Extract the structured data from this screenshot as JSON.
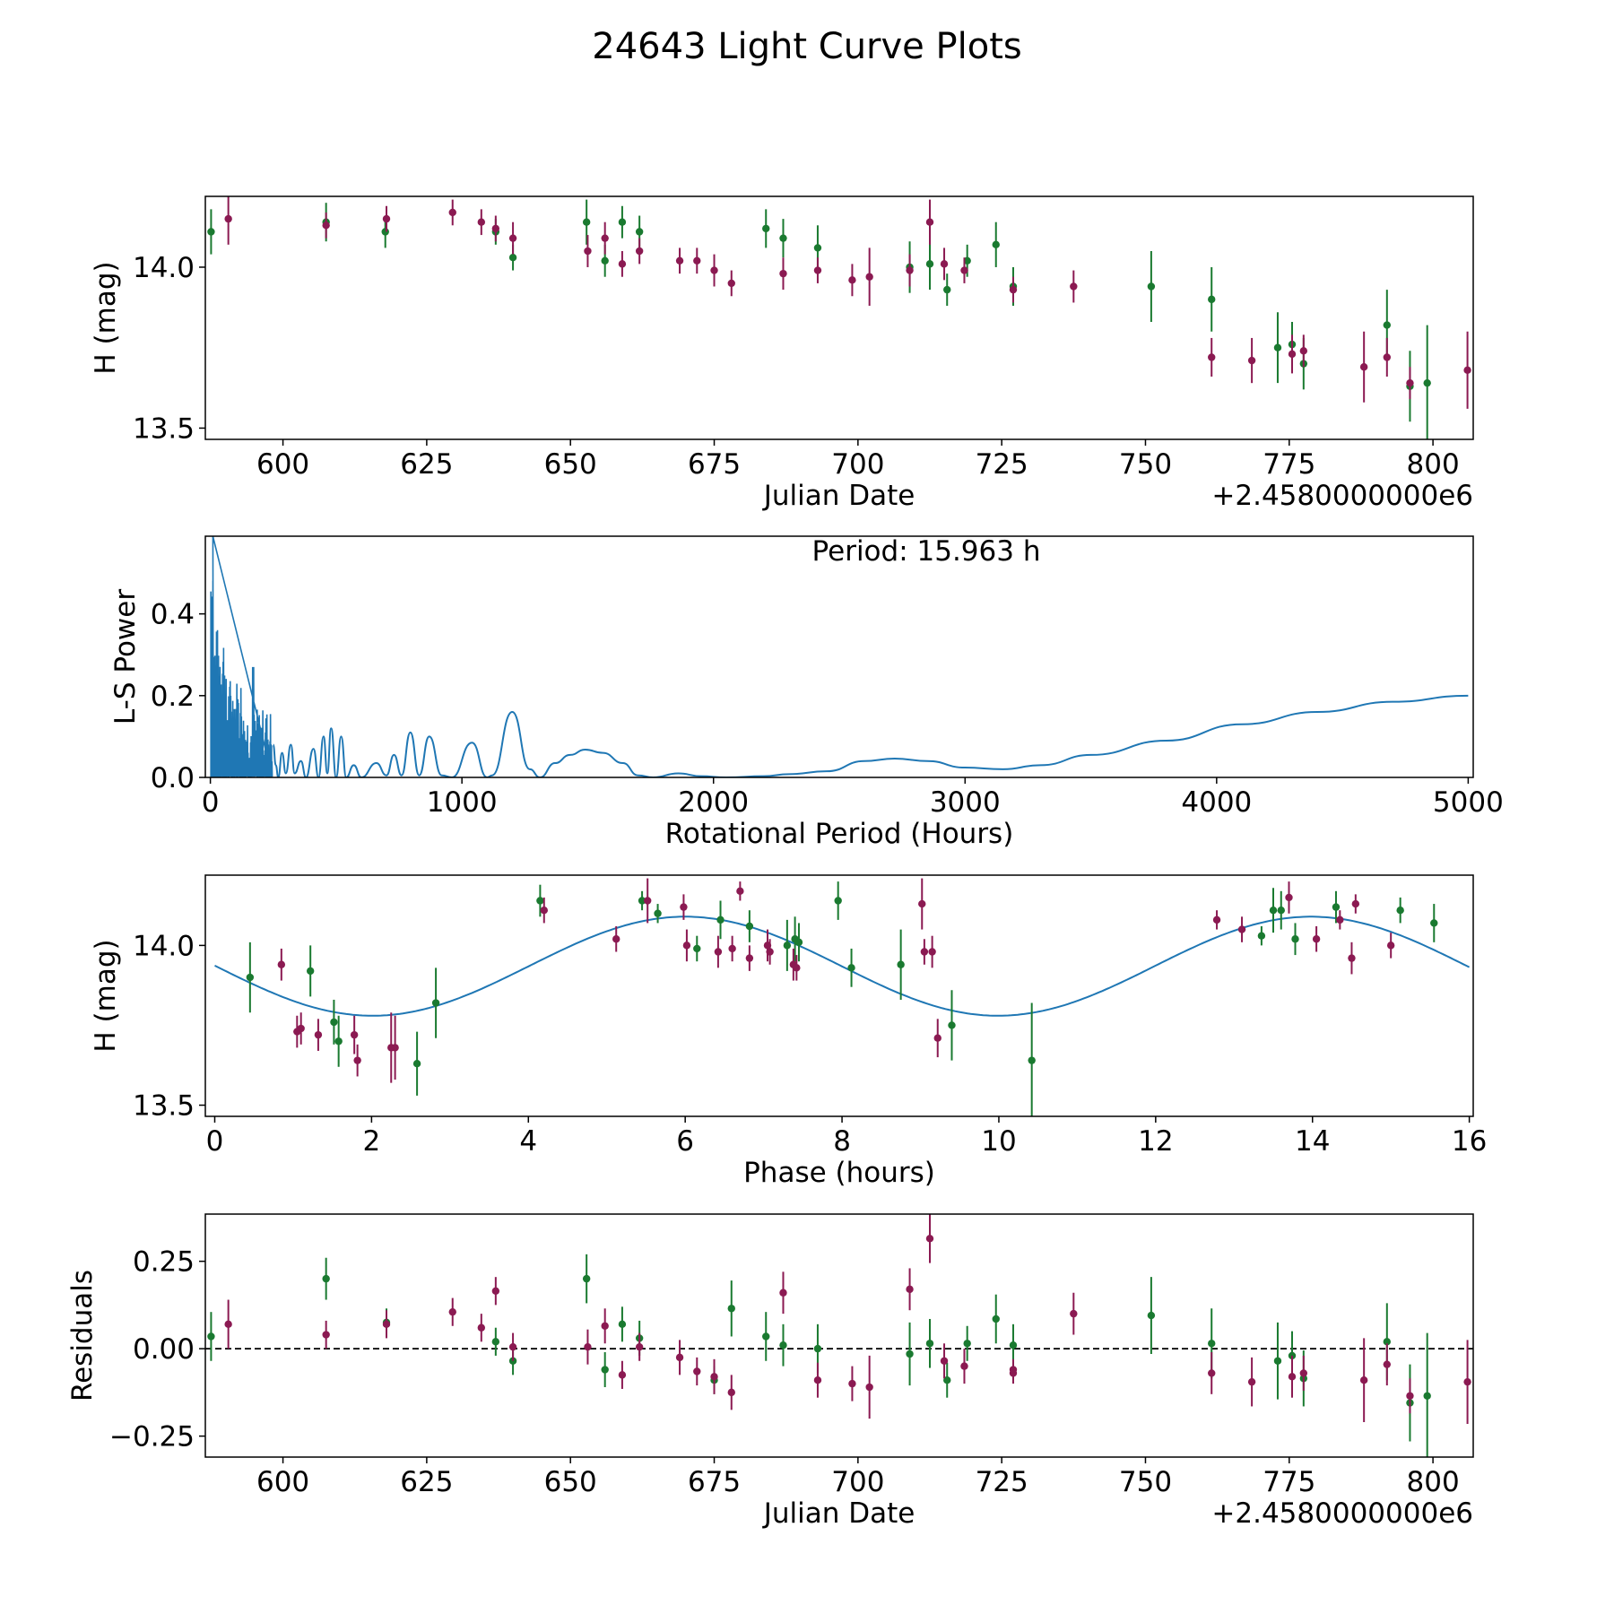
{
  "figure": {
    "title": "24643 Light Curve Plots",
    "colors": {
      "green": "#1a7a30",
      "magenta": "#8b1a52",
      "curve": "#1f77b4",
      "axis": "#000000"
    }
  },
  "chart_data": [
    {
      "id": "lightcurve",
      "type": "scatter",
      "xlabel": "Julian Date",
      "ylabel": "H (mag)",
      "offset_text": "+2.4580000000e6",
      "xlim": [
        586.5,
        807.0
      ],
      "ylim": [
        13.465,
        14.22
      ],
      "xticks": [
        600,
        625,
        650,
        675,
        700,
        725,
        750,
        775,
        800
      ],
      "xtick_labels": [
        "600",
        "625",
        "650",
        "675",
        "700",
        "725",
        "750",
        "775",
        "800"
      ],
      "yticks": [
        13.5,
        14.0
      ],
      "ytick_labels": [
        "13.5",
        "14.0"
      ],
      "series": [
        {
          "name": "green",
          "color": "#1a7a30",
          "x": [
            587.5,
            607.5,
            617.8,
            637.0,
            640.0,
            652.8,
            656.0,
            659.0,
            662.0,
            684.0,
            687.0,
            693.0,
            709.0,
            712.5,
            715.5,
            719.0,
            724.0,
            727.0,
            751.0,
            761.5,
            773.0,
            775.5,
            777.5,
            792.0,
            796.0,
            799.0
          ],
          "y": [
            14.11,
            14.14,
            14.11,
            14.11,
            14.03,
            14.14,
            14.02,
            14.14,
            14.11,
            14.12,
            14.09,
            14.06,
            14.0,
            14.01,
            13.93,
            14.02,
            14.07,
            13.94,
            13.94,
            13.9,
            13.75,
            13.76,
            13.7,
            13.82,
            13.63,
            13.64
          ],
          "err": [
            0.07,
            0.06,
            0.05,
            0.04,
            0.04,
            0.07,
            0.05,
            0.05,
            0.05,
            0.06,
            0.06,
            0.07,
            0.08,
            0.08,
            0.05,
            0.05,
            0.07,
            0.06,
            0.11,
            0.1,
            0.11,
            0.07,
            0.08,
            0.11,
            0.11,
            0.18
          ]
        },
        {
          "name": "magenta",
          "color": "#8b1a52",
          "x": [
            590.5,
            607.5,
            618.0,
            629.5,
            634.5,
            637.0,
            640.0,
            653.0,
            656.0,
            659.0,
            662.0,
            669.0,
            672.0,
            675.0,
            678.0,
            687.0,
            693.0,
            699.0,
            702.0,
            709.0,
            712.5,
            715.0,
            718.5,
            727.0,
            737.5,
            761.5,
            768.5,
            775.5,
            777.5,
            788.0,
            792.0,
            796.0,
            806.0
          ],
          "y": [
            14.15,
            14.13,
            14.15,
            14.17,
            14.14,
            14.12,
            14.09,
            14.05,
            14.09,
            14.01,
            14.05,
            14.02,
            14.02,
            13.99,
            13.95,
            13.98,
            13.99,
            13.96,
            13.97,
            13.99,
            14.14,
            14.01,
            13.99,
            13.93,
            13.94,
            13.72,
            13.71,
            13.73,
            13.74,
            13.69,
            13.72,
            13.64,
            13.68
          ],
          "err": [
            0.08,
            0.04,
            0.04,
            0.04,
            0.04,
            0.04,
            0.05,
            0.05,
            0.05,
            0.04,
            0.04,
            0.04,
            0.04,
            0.05,
            0.04,
            0.05,
            0.04,
            0.05,
            0.09,
            0.05,
            0.07,
            0.05,
            0.04,
            0.04,
            0.05,
            0.06,
            0.07,
            0.06,
            0.05,
            0.11,
            0.06,
            0.05,
            0.12
          ]
        }
      ]
    },
    {
      "id": "periodogram",
      "type": "line",
      "xlabel": "Rotational Period (Hours)",
      "ylabel": "L-S Power",
      "annotation": "Period: 15.963 h",
      "xlim": [
        -20,
        5020
      ],
      "ylim": [
        0,
        0.59
      ],
      "xticks": [
        0,
        1000,
        2000,
        3000,
        4000,
        5000
      ],
      "xtick_labels": [
        "0",
        "1000",
        "2000",
        "3000",
        "4000",
        "5000"
      ],
      "yticks": [
        0.0,
        0.2,
        0.4
      ],
      "ytick_labels": [
        "0.0",
        "0.2",
        "0.4"
      ],
      "curve_points": [
        [
          250,
          0.08
        ],
        [
          260,
          0.03
        ],
        [
          270,
          0.0
        ],
        [
          285,
          0.06
        ],
        [
          300,
          0.01
        ],
        [
          320,
          0.08
        ],
        [
          335,
          0.01
        ],
        [
          360,
          0.04
        ],
        [
          380,
          0.0
        ],
        [
          410,
          0.07
        ],
        [
          430,
          0.0
        ],
        [
          450,
          0.1
        ],
        [
          465,
          0.01
        ],
        [
          480,
          0.12
        ],
        [
          500,
          0.0
        ],
        [
          520,
          0.1
        ],
        [
          540,
          0.0
        ],
        [
          570,
          0.03
        ],
        [
          600,
          0.0
        ],
        [
          660,
          0.035
        ],
        [
          700,
          0.005
        ],
        [
          730,
          0.055
        ],
        [
          760,
          0.005
        ],
        [
          795,
          0.11
        ],
        [
          830,
          0.005
        ],
        [
          870,
          0.1
        ],
        [
          920,
          0.005
        ],
        [
          960,
          0.0
        ],
        [
          1040,
          0.085
        ],
        [
          1100,
          0.0
        ],
        [
          1120,
          0.005
        ],
        [
          1200,
          0.16
        ],
        [
          1270,
          0.02
        ],
        [
          1310,
          0.0
        ],
        [
          1370,
          0.035
        ],
        [
          1430,
          0.055
        ],
        [
          1490,
          0.068
        ],
        [
          1560,
          0.06
        ],
        [
          1640,
          0.035
        ],
        [
          1700,
          0.005
        ],
        [
          1760,
          0.0
        ],
        [
          1860,
          0.01
        ],
        [
          1950,
          0.003
        ],
        [
          2050,
          0.0
        ],
        [
          2200,
          0.003
        ],
        [
          2300,
          0.008
        ],
        [
          2450,
          0.015
        ],
        [
          2600,
          0.04
        ],
        [
          2720,
          0.046
        ],
        [
          2850,
          0.04
        ],
        [
          3000,
          0.024
        ],
        [
          3150,
          0.02
        ],
        [
          3300,
          0.03
        ],
        [
          3500,
          0.055
        ],
        [
          3800,
          0.09
        ],
        [
          4100,
          0.13
        ],
        [
          4400,
          0.16
        ],
        [
          4700,
          0.185
        ],
        [
          5000,
          0.2
        ]
      ],
      "spike_region": {
        "x_start": 2,
        "x_end": 245,
        "peak": 0.59,
        "count": 120
      }
    },
    {
      "id": "phased",
      "type": "scatter",
      "xlabel": "Phase (hours)",
      "ylabel": "H (mag)",
      "xlim": [
        -0.12,
        16.05
      ],
      "ylim": [
        13.465,
        14.22
      ],
      "xticks": [
        0,
        2,
        4,
        6,
        8,
        10,
        12,
        14,
        16
      ],
      "xtick_labels": [
        "0",
        "2",
        "4",
        "6",
        "8",
        "10",
        "12",
        "14",
        "16"
      ],
      "yticks": [
        13.5,
        14.0
      ],
      "ytick_labels": [
        "13.5",
        "14.0"
      ],
      "model": {
        "mean": 13.935,
        "amplitude": 0.155,
        "period": 7.98,
        "peak_phase": 6.0
      },
      "series": [
        {
          "name": "green",
          "color": "#1a7a30",
          "x": [
            0.45,
            1.22,
            1.52,
            1.58,
            2.58,
            2.82,
            4.15,
            5.45,
            5.65,
            6.15,
            6.45,
            6.82,
            7.3,
            7.4,
            7.45,
            7.95,
            8.12,
            8.75,
            9.4,
            10.42,
            13.35,
            13.5,
            13.6,
            13.78,
            14.3,
            15.12,
            15.55
          ],
          "y": [
            13.9,
            13.92,
            13.76,
            13.7,
            13.63,
            13.82,
            14.14,
            14.14,
            14.1,
            13.99,
            14.08,
            14.06,
            14.0,
            14.02,
            14.01,
            14.14,
            13.93,
            13.94,
            13.75,
            13.64,
            14.03,
            14.11,
            14.11,
            14.02,
            14.12,
            14.11,
            14.07
          ],
          "err": [
            0.11,
            0.08,
            0.07,
            0.08,
            0.1,
            0.11,
            0.05,
            0.03,
            0.03,
            0.04,
            0.06,
            0.05,
            0.08,
            0.07,
            0.06,
            0.06,
            0.06,
            0.11,
            0.11,
            0.18,
            0.03,
            0.07,
            0.06,
            0.05,
            0.05,
            0.04,
            0.06
          ]
        },
        {
          "name": "magenta",
          "color": "#8b1a52",
          "x": [
            0.85,
            1.05,
            1.1,
            1.32,
            1.78,
            1.82,
            2.25,
            2.3,
            4.2,
            5.12,
            5.52,
            5.98,
            6.02,
            6.42,
            6.6,
            6.7,
            6.82,
            7.05,
            7.08,
            7.38,
            7.42,
            9.02,
            9.05,
            9.15,
            9.22,
            12.78,
            13.1,
            13.7,
            14.05,
            14.35,
            14.5,
            14.55,
            15.0
          ],
          "y": [
            13.94,
            13.73,
            13.74,
            13.72,
            13.72,
            13.64,
            13.68,
            13.68,
            14.11,
            14.02,
            14.14,
            14.12,
            14.0,
            13.98,
            13.99,
            14.17,
            13.96,
            14.0,
            13.98,
            13.94,
            13.93,
            14.13,
            13.98,
            13.98,
            13.71,
            14.08,
            14.05,
            14.15,
            14.02,
            14.08,
            13.96,
            14.13,
            14.0
          ],
          "err": [
            0.05,
            0.05,
            0.05,
            0.05,
            0.06,
            0.05,
            0.11,
            0.1,
            0.04,
            0.04,
            0.07,
            0.04,
            0.05,
            0.05,
            0.04,
            0.03,
            0.04,
            0.05,
            0.04,
            0.05,
            0.04,
            0.08,
            0.04,
            0.05,
            0.06,
            0.03,
            0.04,
            0.05,
            0.04,
            0.03,
            0.05,
            0.03,
            0.04
          ]
        }
      ]
    },
    {
      "id": "residuals",
      "type": "scatter",
      "xlabel": "Julian Date",
      "ylabel": "Residuals",
      "offset_text": "+2.4580000000e6",
      "xlim": [
        586.5,
        807.0
      ],
      "ylim": [
        -0.31,
        0.385
      ],
      "xticks": [
        600,
        625,
        650,
        675,
        700,
        725,
        750,
        775,
        800
      ],
      "xtick_labels": [
        "600",
        "625",
        "650",
        "675",
        "700",
        "725",
        "750",
        "775",
        "800"
      ],
      "yticks": [
        -0.25,
        0.0,
        0.25
      ],
      "ytick_labels": [
        "−0.25",
        "0.00",
        "0.25"
      ],
      "zero_line": 0.0,
      "series": [
        {
          "name": "green",
          "color": "#1a7a30",
          "x": [
            587.5,
            607.5,
            618.0,
            637.0,
            640.0,
            652.8,
            656.0,
            659.0,
            662.0,
            675.0,
            678.0,
            684.0,
            687.0,
            693.0,
            709.0,
            712.5,
            715.5,
            719.0,
            724.0,
            727.0,
            751.0,
            761.5,
            773.0,
            775.5,
            777.5,
            792.0,
            796.0,
            799.0
          ],
          "y": [
            0.035,
            0.2,
            0.075,
            0.02,
            -0.035,
            0.2,
            -0.06,
            0.07,
            0.03,
            -0.09,
            0.115,
            0.035,
            0.01,
            0.0,
            -0.015,
            0.015,
            -0.09,
            0.015,
            0.085,
            0.01,
            0.095,
            0.015,
            -0.035,
            -0.02,
            -0.085,
            0.02,
            -0.155,
            -0.135
          ],
          "err": [
            0.07,
            0.06,
            0.04,
            0.04,
            0.04,
            0.07,
            0.05,
            0.05,
            0.05,
            0.04,
            0.08,
            0.07,
            0.06,
            0.07,
            0.09,
            0.07,
            0.05,
            0.05,
            0.07,
            0.06,
            0.11,
            0.1,
            0.11,
            0.07,
            0.08,
            0.11,
            0.11,
            0.18
          ]
        },
        {
          "name": "magenta",
          "color": "#8b1a52",
          "x": [
            590.5,
            607.5,
            618.0,
            629.5,
            634.5,
            637.0,
            640.0,
            653.0,
            656.0,
            659.0,
            662.0,
            669.0,
            672.0,
            675.0,
            678.0,
            687.0,
            693.0,
            699.0,
            702.0,
            709.0,
            712.5,
            715.0,
            718.5,
            727.0,
            727.0,
            737.5,
            761.5,
            768.5,
            775.5,
            777.5,
            788.0,
            792.0,
            796.0,
            806.0
          ],
          "y": [
            0.07,
            0.04,
            0.07,
            0.105,
            0.06,
            0.165,
            0.005,
            0.005,
            0.065,
            -0.075,
            0.005,
            -0.025,
            -0.065,
            -0.08,
            -0.125,
            0.16,
            -0.09,
            -0.1,
            -0.11,
            0.17,
            0.315,
            -0.035,
            -0.05,
            -0.06,
            -0.07,
            0.1,
            -0.07,
            -0.095,
            -0.08,
            -0.07,
            -0.09,
            -0.045,
            -0.135,
            -0.095
          ],
          "err": [
            0.07,
            0.04,
            0.04,
            0.04,
            0.04,
            0.04,
            0.04,
            0.05,
            0.05,
            0.04,
            0.04,
            0.05,
            0.04,
            0.05,
            0.05,
            0.06,
            0.05,
            0.05,
            0.09,
            0.06,
            0.07,
            0.05,
            0.05,
            0.03,
            0.03,
            0.06,
            0.06,
            0.07,
            0.06,
            0.05,
            0.12,
            0.06,
            0.05,
            0.12
          ]
        }
      ]
    }
  ]
}
